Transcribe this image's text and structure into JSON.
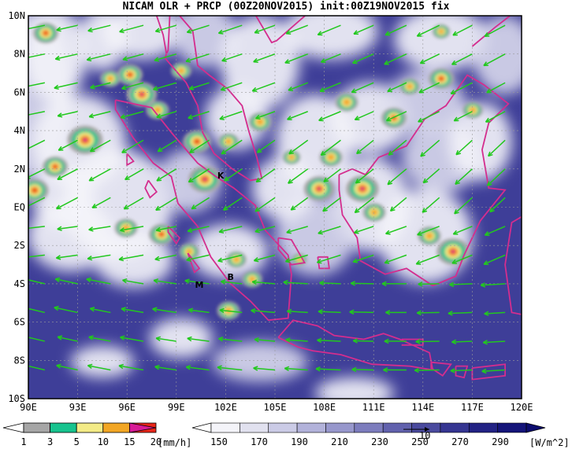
{
  "title": "NICAM OLR + PRCP (00Z20NOV2015) init:00Z19NOV2015 fix",
  "map": {
    "lon_range": [
      90,
      120
    ],
    "lat_range": [
      -10,
      10
    ],
    "grid": true,
    "lat_labels": [
      "10N",
      "8N",
      "6N",
      "4N",
      "2N",
      "EQ",
      "2S",
      "4S",
      "6S",
      "8S",
      "10S"
    ],
    "lat_values": [
      10,
      8,
      6,
      4,
      2,
      0,
      -2,
      -4,
      -6,
      -8,
      -10
    ],
    "lon_labels": [
      "90E",
      "93E",
      "96E",
      "99E",
      "102E",
      "105E",
      "108E",
      "111E",
      "114E",
      "117E",
      "120E"
    ],
    "lon_values": [
      90,
      93,
      96,
      99,
      102,
      105,
      108,
      111,
      114,
      117,
      120
    ],
    "cities": [
      {
        "label": "K",
        "lon": 101.7,
        "lat": 1.5
      },
      {
        "label": "M",
        "lon": 100.4,
        "lat": -4.2
      },
      {
        "label": "B",
        "lon": 102.3,
        "lat": -3.8
      }
    ],
    "reference_vector_label": "10"
  },
  "colorbars": {
    "precip": {
      "values": [
        "1",
        "3",
        "5",
        "10",
        "15",
        "20"
      ],
      "unit": "[mm/h]",
      "colors": [
        "#a6a6a6",
        "#17c38e",
        "#f3eb86",
        "#f2a624",
        "#ea2619",
        "#d81b96"
      ]
    },
    "olr": {
      "values": [
        "150",
        "170",
        "190",
        "210",
        "230",
        "250",
        "270",
        "290"
      ],
      "unit": "[W/m^2]",
      "colors": [
        "#f4f4f9",
        "#e1e1ef",
        "#cbcbe6",
        "#b2b2da",
        "#9797cc",
        "#7c7cbd",
        "#6161ad",
        "#4a4a9e",
        "#353591",
        "#222284",
        "#141479"
      ]
    }
  }
}
